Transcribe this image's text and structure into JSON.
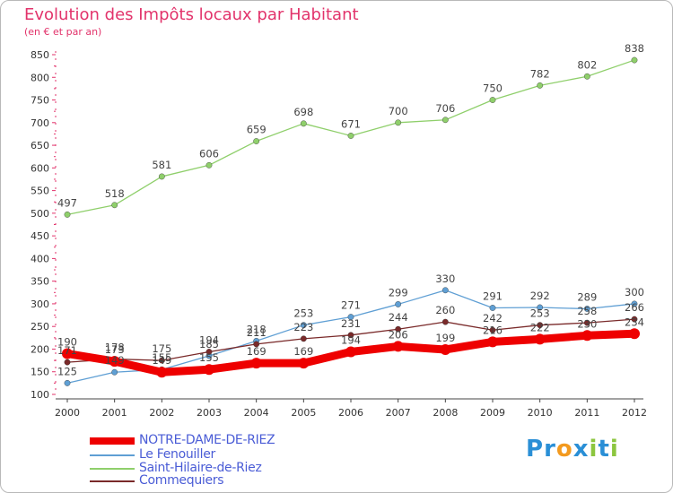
{
  "header": {
    "title": "Evolution des Impôts locaux par Habitant",
    "subtitle": "(en € et par an)"
  },
  "brand": {
    "text": "Proxiti",
    "letters": [
      {
        "char": "P",
        "color": "#2a8fd6"
      },
      {
        "char": "r",
        "color": "#2a8fd6"
      },
      {
        "char": "o",
        "color": "#f39a1f"
      },
      {
        "char": "x",
        "color": "#2a8fd6"
      },
      {
        "char": "i",
        "color": "#8cc63f"
      },
      {
        "char": "t",
        "color": "#2a8fd6"
      },
      {
        "char": "i",
        "color": "#8cc63f"
      }
    ]
  },
  "chart_data": {
    "type": "line",
    "title": "Evolution des Impôts locaux par Habitant",
    "subtitle": "(en € et par an)",
    "x": [
      "2000",
      "2001",
      "2002",
      "2003",
      "2004",
      "2005",
      "2006",
      "2007",
      "2008",
      "2009",
      "2010",
      "2011",
      "2012"
    ],
    "ylim": [
      100,
      850
    ],
    "yticks": [
      100,
      150,
      200,
      250,
      300,
      350,
      400,
      450,
      500,
      550,
      600,
      650,
      700,
      750,
      800,
      850
    ],
    "grid": false,
    "legend_position": "bottom-left",
    "series": [
      {
        "name": "NOTRE-DAME-DE-RIEZ",
        "color": "#ee0000",
        "width": "thick",
        "values": [
          190,
          173,
          149,
          155,
          169,
          169,
          194,
          206,
          199,
          216,
          222,
          230,
          234
        ],
        "labels": [
          "190",
          "173",
          "149",
          "155",
          "169",
          "169",
          "194",
          "206",
          "199",
          "216",
          "222",
          "230",
          "234"
        ]
      },
      {
        "name": "Le Fenouiller",
        "color": "#5f9fd4",
        "width": "thin",
        "values": [
          125,
          149,
          155,
          185,
          218,
          253,
          271,
          299,
          330,
          291,
          292,
          289,
          300
        ],
        "labels": [
          "125",
          "149",
          "155",
          "185",
          "218",
          "253",
          "271",
          "299",
          "330",
          "291",
          "292",
          "289",
          "300"
        ]
      },
      {
        "name": "Saint-Hilaire-de-Riez",
        "color": "#8fcf6b",
        "width": "thin",
        "values": [
          497,
          518,
          581,
          606,
          659,
          698,
          671,
          700,
          706,
          750,
          782,
          802,
          838
        ],
        "labels": [
          "497",
          "518",
          "581",
          "606",
          "659",
          "698",
          "671",
          "700",
          "706",
          "750",
          "782",
          "802",
          "838"
        ]
      },
      {
        "name": "Commequiers",
        "color": "#7a2a2a",
        "width": "thin",
        "values": [
          171,
          178,
          175,
          194,
          211,
          223,
          231,
          244,
          260,
          242,
          253,
          258,
          266
        ],
        "labels": [
          "171",
          "178",
          "175",
          "194",
          "211",
          "223",
          "231",
          "244",
          "260",
          "242",
          "253",
          "258",
          "266"
        ]
      }
    ]
  }
}
